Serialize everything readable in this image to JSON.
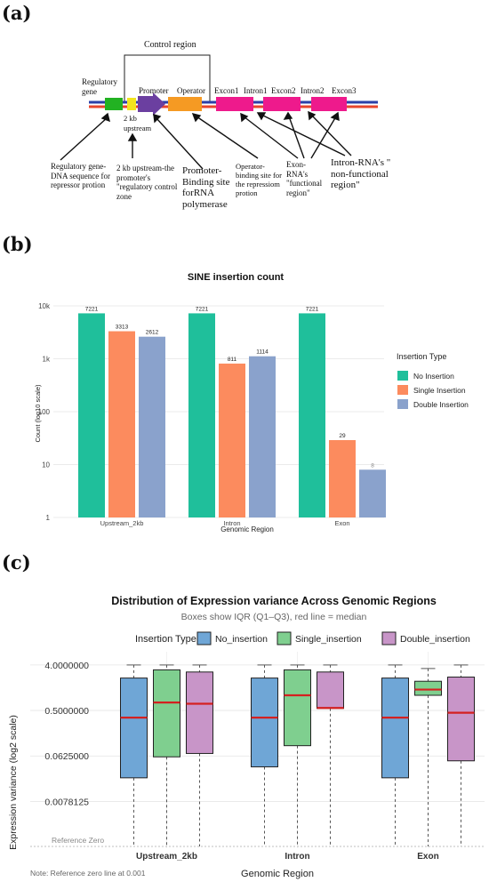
{
  "panels": {
    "a": {
      "label": "(a)",
      "control_region": "Control region",
      "elements": {
        "regulatory_gene": "Regulatory gene",
        "promoter": "Promoter",
        "operator": "Operator",
        "exon1": "Excon1",
        "intron1": "Intron1",
        "exon2": "Excon2",
        "intron2": "Intron2",
        "exon3": "Excon3",
        "upstream": "2 kb upstream"
      },
      "annotations": {
        "regulatory": "Regulatory gene-DNA sequence for repressor protion",
        "upstream": "2 kb upstream-the promoter's \"regulatory control zone",
        "promoter": "Promoter-Binding site forRNA polymerase",
        "operator": "Operator-binding site for the repressiom protion",
        "exon": "Exon-RNA's \"functional region\"",
        "intron": "Intron-RNA's \" non-functional region\""
      },
      "colors": {
        "regulatory": "#22b222",
        "upstream": "#f2e51d",
        "promoter": "#6b3fa0",
        "operator": "#f59a23",
        "exon": "#ee1a8c",
        "intron": "#ee1a8c",
        "strand_top": "#2b3fa8",
        "strand_bottom": "#e8452c"
      }
    },
    "b": {
      "label": "(b)",
      "chart_data": {
        "type": "bar",
        "title": "SINE insertion count",
        "xlabel": "Genomic Region",
        "ylabel": "Count (log10 scale)",
        "yscale": "log10",
        "ylim": [
          1,
          10000
        ],
        "yticks": [
          "1",
          "10",
          "100",
          "1k",
          "10k"
        ],
        "categories": [
          "Upstream_2kb",
          "Intron",
          "Exon"
        ],
        "legend_title": "Insertion Type",
        "legend_position": "right",
        "series": [
          {
            "name": "No Insertion",
            "color": "#1fbf9b",
            "values": [
              7221,
              7221,
              7221
            ]
          },
          {
            "name": "Single Insertion",
            "color": "#fc8b5e",
            "values": [
              3313,
              811,
              29
            ]
          },
          {
            "name": "Double Insertion",
            "color": "#8aa2cc",
            "values": [
              2612,
              1114,
              8
            ]
          }
        ],
        "grid": true
      }
    },
    "c": {
      "label": "(c)",
      "chart_data": {
        "type": "box",
        "title": "Distribution of Expression variance Across Genomic Regions",
        "subtitle": "Boxes show IQR (Q1–Q3), red line = median",
        "xlabel": "Genomic Region",
        "ylabel": "Expression variance (log2 scale)",
        "yscale": "log2",
        "yticks": [
          "4.0000000",
          "0.5000000",
          "0.0625000",
          "0.0078125"
        ],
        "ytick_values": [
          4.0,
          0.5,
          0.0625,
          0.0078125
        ],
        "reference_line": {
          "label": "Reference Zero",
          "value": 0.001
        },
        "note": "Note: Reference zero line at 0.001",
        "legend_title": "Insertion Type",
        "legend_position": "top",
        "categories": [
          "Upstream_2kb",
          "Intron",
          "Exon"
        ],
        "series": [
          {
            "name": "No_insertion",
            "color": "#6fa6d6",
            "boxes": [
              {
                "q1": 0.023,
                "median": 0.36,
                "q3": 2.2,
                "whisker_low": 0.001,
                "whisker_high": 4.0
              },
              {
                "q1": 0.038,
                "median": 0.36,
                "q3": 2.2,
                "whisker_low": 0.001,
                "whisker_high": 4.0
              },
              {
                "q1": 0.023,
                "median": 0.36,
                "q3": 2.2,
                "whisker_low": 0.001,
                "whisker_high": 4.0
              }
            ]
          },
          {
            "name": "Single_insertion",
            "color": "#7fcf8f",
            "boxes": [
              {
                "q1": 0.06,
                "median": 0.72,
                "q3": 3.2,
                "whisker_low": 0.001,
                "whisker_high": 4.0
              },
              {
                "q1": 0.1,
                "median": 1.0,
                "q3": 3.2,
                "whisker_low": 0.001,
                "whisker_high": 4.0
              },
              {
                "q1": 1.0,
                "median": 1.3,
                "q3": 1.9,
                "whisker_low": 0.001,
                "whisker_high": 3.4
              }
            ]
          },
          {
            "name": "Double_insertion",
            "color": "#c895c8",
            "boxes": [
              {
                "q1": 0.07,
                "median": 0.68,
                "q3": 2.9,
                "whisker_low": 0.001,
                "whisker_high": 4.0
              },
              {
                "q1": 0.55,
                "median": 0.56,
                "q3": 2.9,
                "whisker_low": 0.001,
                "whisker_high": 4.0
              },
              {
                "q1": 0.05,
                "median": 0.45,
                "q3": 2.3,
                "whisker_low": 0.001,
                "whisker_high": 4.0
              }
            ]
          }
        ]
      }
    }
  }
}
